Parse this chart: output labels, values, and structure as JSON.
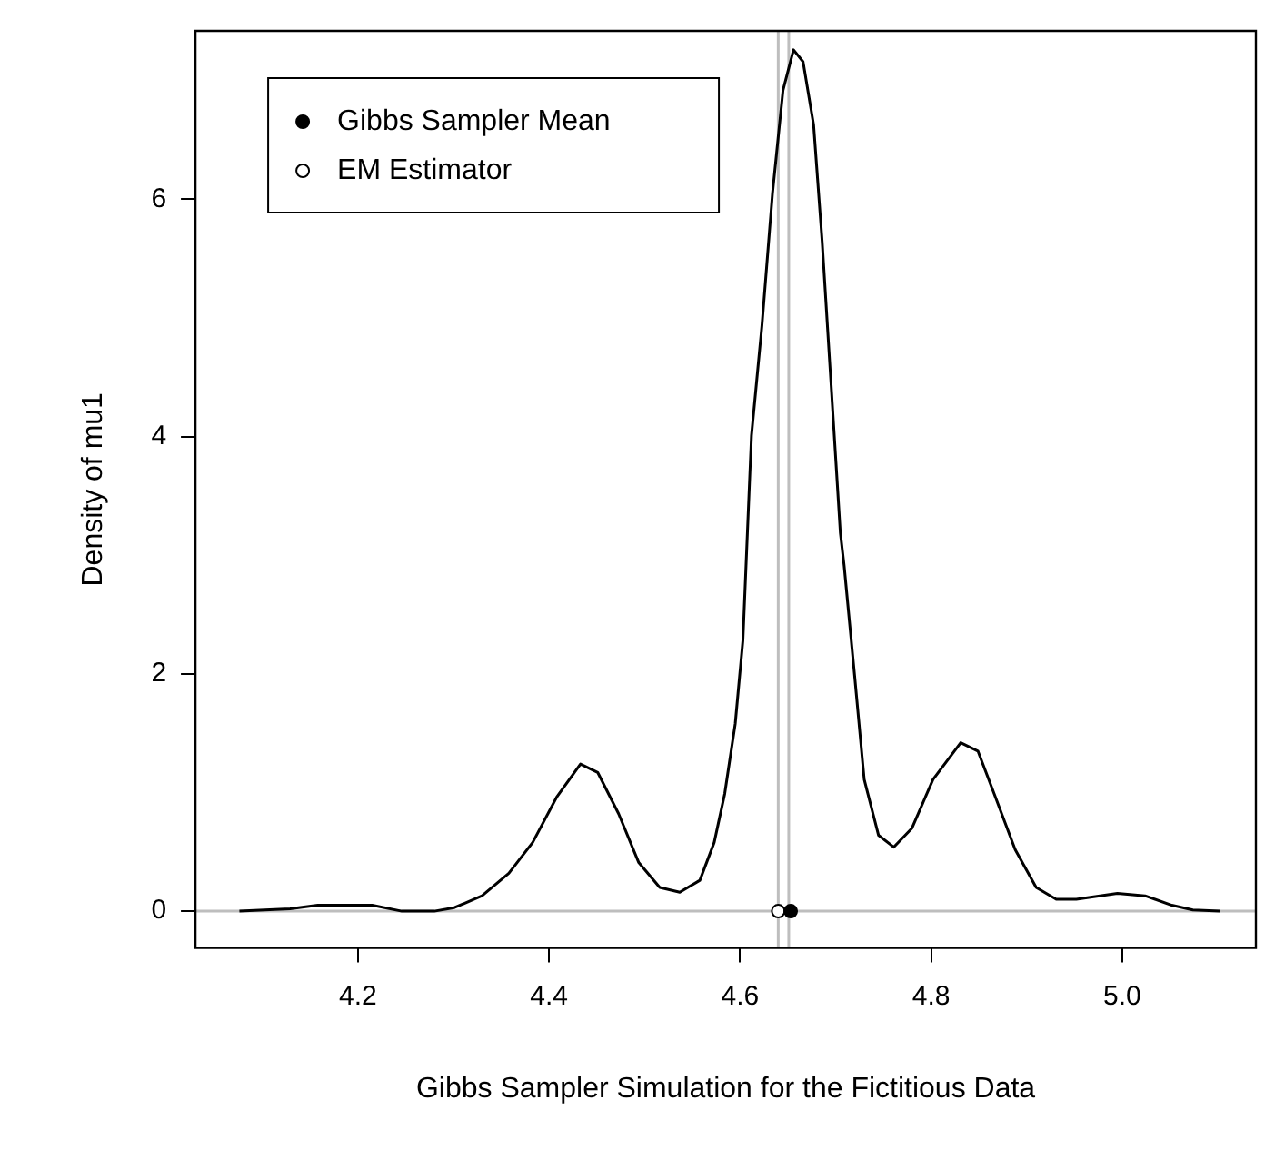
{
  "chart_data": {
    "type": "line",
    "xlabel": "Gibbs Sampler Simulation for the Fictitious Data",
    "ylabel": "Density of mu1",
    "xlim": [
      4.03,
      5.14
    ],
    "xticks": [
      4.2,
      4.4,
      4.6,
      4.8,
      {
        "value": 5.0,
        "label": "5.0"
      }
    ],
    "ylim": [
      -0.31,
      7.42
    ],
    "yticks": [
      0,
      2,
      4,
      6
    ],
    "grid": false,
    "legend": "top left",
    "series": [
      {
        "color": "#000000",
        "marker": "none",
        "x": [
          4.076,
          4.129,
          4.158,
          4.215,
          4.246,
          4.28,
          4.301,
          4.33,
          4.358,
          4.383,
          4.408,
          4.433,
          4.451,
          4.473,
          4.494,
          4.516,
          4.537,
          4.558,
          4.573,
          4.584,
          4.595,
          4.603,
          4.612,
          4.623,
          4.634,
          4.645,
          4.656,
          4.666,
          4.677,
          4.686,
          4.695,
          4.705,
          4.709,
          4.72,
          4.73,
          4.745,
          4.761,
          4.78,
          4.802,
          4.831,
          4.849,
          4.866,
          4.888,
          4.91,
          4.931,
          4.952,
          4.995,
          5.024,
          5.052,
          5.074,
          5.102
        ],
        "values": [
          0,
          0.02,
          0.05,
          0.05,
          0,
          0,
          0.03,
          0.13,
          0.32,
          0.58,
          0.96,
          1.24,
          1.17,
          0.82,
          0.41,
          0.2,
          0.16,
          0.26,
          0.58,
          0.99,
          1.58,
          2.28,
          4.01,
          4.94,
          6.05,
          6.92,
          7.26,
          7.16,
          6.63,
          5.64,
          4.48,
          3.19,
          2.91,
          1.98,
          1.11,
          0.64,
          0.54,
          0.7,
          1.11,
          1.42,
          1.35,
          0.99,
          0.52,
          0.2,
          0.1,
          0.1,
          0.15,
          0.13,
          0.05,
          0.01,
          0
        ]
      },
      {
        "type": "scatter",
        "name": "Gibbs Sampler Mean",
        "color": "#000000",
        "marker": "circle",
        "x": [
          4.653
        ],
        "values": [
          0
        ]
      },
      {
        "type": "scatter",
        "name": "EM Estimator",
        "color": "#ffffff",
        "marker": "circle",
        "x": [
          4.64
        ],
        "values": [
          0
        ]
      }
    ],
    "ref_lines": [
      {
        "axis": "y",
        "value": 0,
        "color": "#bebebe"
      },
      {
        "axis": "x",
        "value": 4.64,
        "color": "#bebebe"
      },
      {
        "axis": "x",
        "value": 4.651,
        "color": "#bebebe"
      }
    ]
  }
}
